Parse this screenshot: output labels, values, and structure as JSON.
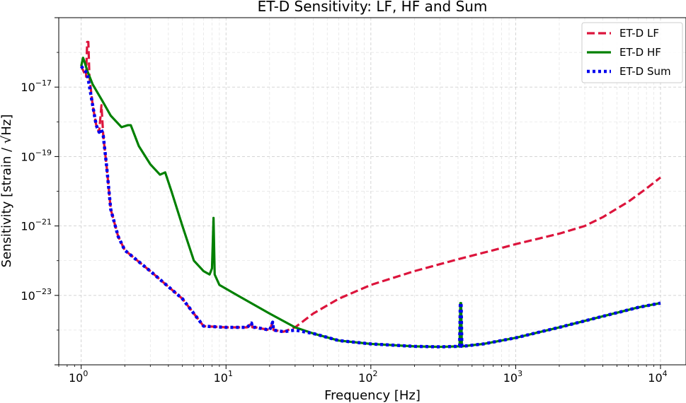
{
  "chart_data": {
    "type": "line",
    "title": "ET-D Sensitivity: LF, HF and Sum",
    "xlabel": "Frequency [Hz]",
    "ylabel": "Sensitivity [strain / √Hz]",
    "xscale": "log",
    "yscale": "log",
    "xlim": [
      0.7,
      15000
    ],
    "ylim": [
      1e-25,
      1e-15
    ],
    "grid": true,
    "legend_position": "top-right",
    "x_ticks": [
      {
        "value": 1,
        "base": "10",
        "exp": "0"
      },
      {
        "value": 10,
        "base": "10",
        "exp": "1"
      },
      {
        "value": 100,
        "base": "10",
        "exp": "2"
      },
      {
        "value": 1000,
        "base": "10",
        "exp": "3"
      },
      {
        "value": 10000,
        "base": "10",
        "exp": "4"
      }
    ],
    "y_ticks": [
      {
        "value": 1e-17,
        "base": "10",
        "exp": "−17"
      },
      {
        "value": 1e-19,
        "base": "10",
        "exp": "−19"
      },
      {
        "value": 1e-21,
        "base": "10",
        "exp": "−21"
      },
      {
        "value": 1e-23,
        "base": "10",
        "exp": "−23"
      }
    ],
    "series": [
      {
        "name": "ET-D LF",
        "color": "#dc143c",
        "style": "dashed",
        "points": [
          [
            1.0,
            4e-17
          ],
          [
            1.08,
            2e-17
          ],
          [
            1.1,
            2e-16
          ],
          [
            1.12,
            2e-16
          ],
          [
            1.14,
            2e-17
          ],
          [
            1.2,
            3e-18
          ],
          [
            1.27,
            8e-19
          ],
          [
            1.33,
            5e-19
          ],
          [
            1.38,
            3e-18
          ],
          [
            1.42,
            4e-19
          ],
          [
            1.5,
            5e-20
          ],
          [
            1.6,
            3e-21
          ],
          [
            1.8,
            5e-22
          ],
          [
            2.0,
            2e-22
          ],
          [
            3.0,
            5e-23
          ],
          [
            5.0,
            8e-24
          ],
          [
            7.0,
            1.3e-24
          ],
          [
            10.0,
            1.2e-24
          ],
          [
            14.0,
            1.2e-24
          ],
          [
            15.0,
            1.6e-24
          ],
          [
            15.2,
            1.2e-24
          ],
          [
            16.0,
            1.2e-24
          ],
          [
            20.0,
            1e-24
          ],
          [
            21.0,
            1.7e-24
          ],
          [
            21.3,
            1e-24
          ],
          [
            25.0,
            9e-25
          ],
          [
            30.0,
            1.2e-24
          ],
          [
            40.0,
            3e-24
          ],
          [
            60.0,
            8e-24
          ],
          [
            100.0,
            2e-23
          ],
          [
            200.0,
            5e-23
          ],
          [
            400.0,
            1.1e-22
          ],
          [
            700.0,
            2e-22
          ],
          [
            1000.0,
            3e-22
          ],
          [
            2000.0,
            6e-22
          ],
          [
            3000.0,
            1e-21
          ],
          [
            4000.0,
            1.8e-21
          ],
          [
            6000.0,
            5e-21
          ],
          [
            8000.0,
            1.2e-20
          ],
          [
            10000.0,
            2.5e-20
          ]
        ]
      },
      {
        "name": "ET-D HF",
        "color": "#008000",
        "style": "solid",
        "points": [
          [
            1.0,
            4e-17
          ],
          [
            1.03,
            7e-17
          ],
          [
            1.06,
            5e-17
          ],
          [
            1.1,
            3e-17
          ],
          [
            1.2,
            1.2e-17
          ],
          [
            1.4,
            4e-18
          ],
          [
            1.6,
            1.5e-18
          ],
          [
            1.9,
            7e-19
          ],
          [
            2.1,
            8e-19
          ],
          [
            2.2,
            8e-19
          ],
          [
            2.5,
            2e-19
          ],
          [
            3.0,
            6e-20
          ],
          [
            3.5,
            3e-20
          ],
          [
            3.8,
            3.5e-20
          ],
          [
            4.2,
            1e-20
          ],
          [
            5.0,
            1e-21
          ],
          [
            6.0,
            1e-22
          ],
          [
            7.0,
            5e-23
          ],
          [
            7.7,
            4e-23
          ],
          [
            8.0,
            6e-23
          ],
          [
            8.2,
            1.7e-21
          ],
          [
            8.35,
            4e-23
          ],
          [
            9.0,
            2e-23
          ],
          [
            12.0,
            1e-23
          ],
          [
            20.0,
            3e-24
          ],
          [
            30.0,
            1.2e-24
          ],
          [
            40.0,
            8e-25
          ],
          [
            60.0,
            5e-25
          ],
          [
            100.0,
            4e-25
          ],
          [
            200.0,
            3.4e-25
          ],
          [
            300.0,
            3.3e-25
          ],
          [
            400.0,
            3.4e-25
          ],
          [
            410.0,
            3.4e-25
          ],
          [
            415.0,
            6e-24
          ],
          [
            420.0,
            6e-24
          ],
          [
            425.0,
            3.4e-25
          ],
          [
            600.0,
            4e-25
          ],
          [
            1000.0,
            6e-25
          ],
          [
            2000.0,
            1.2e-24
          ],
          [
            4000.0,
            2.5e-24
          ],
          [
            7000.0,
            4.5e-24
          ],
          [
            10000.0,
            6e-24
          ]
        ]
      },
      {
        "name": "ET-D Sum",
        "color": "#0000ee",
        "style": "dotted",
        "points": [
          [
            1.0,
            4e-17
          ],
          [
            1.1,
            2.5e-17
          ],
          [
            1.2,
            3e-18
          ],
          [
            1.27,
            8e-19
          ],
          [
            1.33,
            5e-19
          ],
          [
            1.38,
            6e-19
          ],
          [
            1.42,
            4e-19
          ],
          [
            1.5,
            5e-20
          ],
          [
            1.6,
            3e-21
          ],
          [
            1.8,
            5e-22
          ],
          [
            2.0,
            2e-22
          ],
          [
            3.0,
            5e-23
          ],
          [
            5.0,
            8e-24
          ],
          [
            7.0,
            1.3e-24
          ],
          [
            10.0,
            1.2e-24
          ],
          [
            14.0,
            1.2e-24
          ],
          [
            15.0,
            1.6e-24
          ],
          [
            15.2,
            1.2e-24
          ],
          [
            16.0,
            1.2e-24
          ],
          [
            20.0,
            1e-24
          ],
          [
            21.0,
            1.7e-24
          ],
          [
            21.3,
            1e-24
          ],
          [
            25.0,
            9e-25
          ],
          [
            30.0,
            1e-24
          ],
          [
            40.0,
            8e-25
          ],
          [
            60.0,
            5e-25
          ],
          [
            100.0,
            4e-25
          ],
          [
            200.0,
            3.4e-25
          ],
          [
            300.0,
            3.3e-25
          ],
          [
            400.0,
            3.4e-25
          ],
          [
            410.0,
            3.4e-25
          ],
          [
            415.0,
            6e-24
          ],
          [
            420.0,
            6e-24
          ],
          [
            425.0,
            3.4e-25
          ],
          [
            600.0,
            4e-25
          ],
          [
            1000.0,
            6e-25
          ],
          [
            2000.0,
            1.2e-24
          ],
          [
            4000.0,
            2.5e-24
          ],
          [
            7000.0,
            4.5e-24
          ],
          [
            10000.0,
            6e-24
          ]
        ]
      }
    ]
  }
}
